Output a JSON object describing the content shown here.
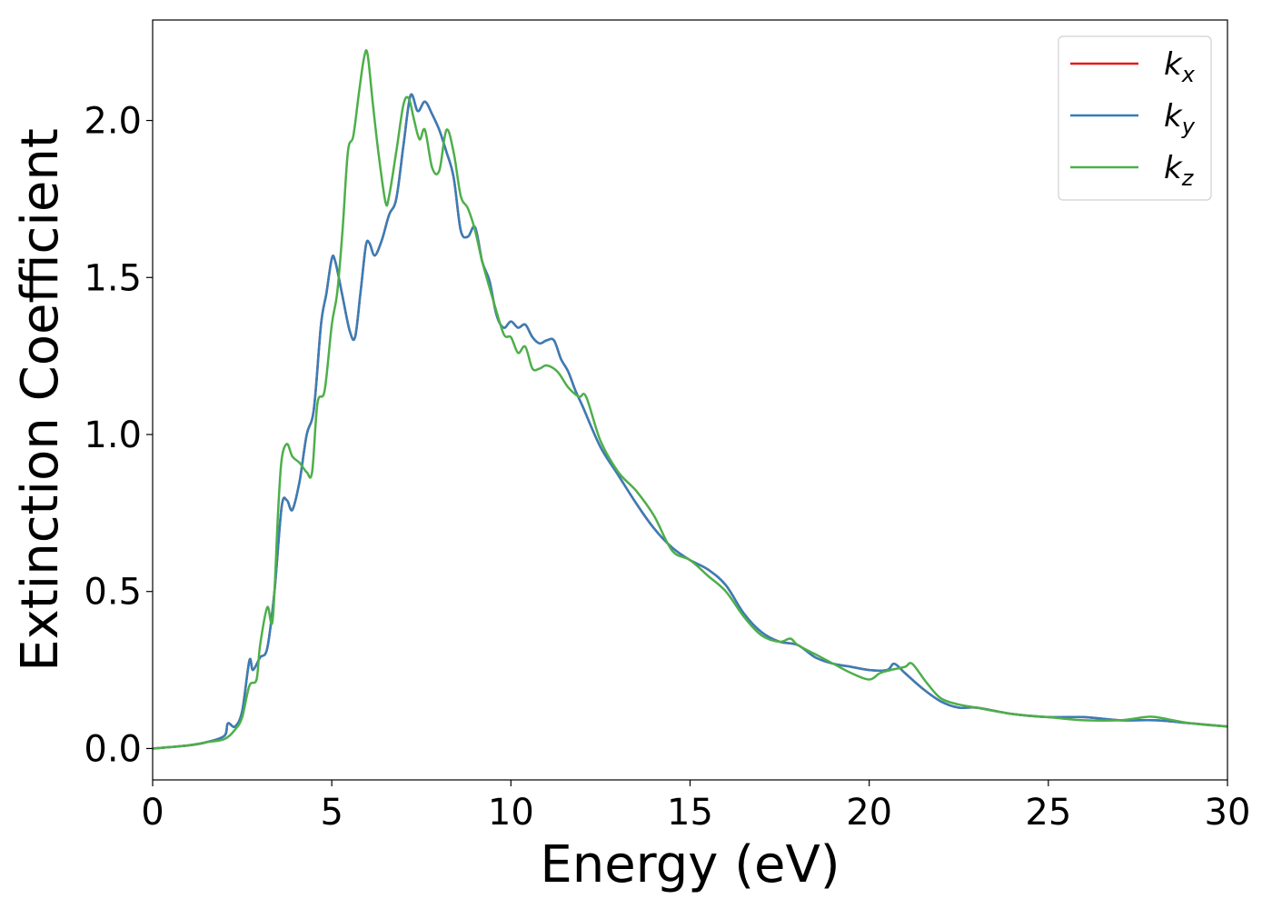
{
  "chart_data": {
    "type": "line",
    "title": "",
    "xlabel": "Energy (eV)",
    "ylabel": "Extinction Coefficient",
    "xlim": [
      0,
      30
    ],
    "ylim": [
      -0.1,
      2.32
    ],
    "xticks": [
      0,
      5,
      10,
      15,
      20,
      25,
      30
    ],
    "xtick_labels": [
      "0",
      "5",
      "10",
      "15",
      "20",
      "25",
      "30"
    ],
    "yticks": [
      0.0,
      0.5,
      1.0,
      1.5,
      2.0
    ],
    "ytick_labels": [
      "0.0",
      "0.5",
      "1.0",
      "1.5",
      "2.0"
    ],
    "grid": false,
    "legend_position": "top-right",
    "series": [
      {
        "name": "kx",
        "color": "#e41a1c",
        "x": [
          0,
          1,
          1.5,
          2.0,
          2.1,
          2.3,
          2.5,
          2.7,
          2.8,
          3.0,
          3.2,
          3.4,
          3.6,
          3.75,
          3.9,
          4.1,
          4.3,
          4.5,
          4.7,
          4.85,
          5.0,
          5.1,
          5.3,
          5.5,
          5.65,
          5.8,
          5.95,
          6.05,
          6.2,
          6.4,
          6.6,
          6.8,
          7.0,
          7.2,
          7.4,
          7.6,
          7.8,
          8.0,
          8.2,
          8.4,
          8.6,
          8.8,
          9.0,
          9.2,
          9.4,
          9.6,
          9.8,
          10.0,
          10.2,
          10.4,
          10.6,
          10.8,
          11.0,
          11.2,
          11.4,
          11.6,
          11.8,
          12.0,
          12.5,
          13.0,
          13.5,
          14.0,
          14.5,
          15.0,
          15.5,
          16.0,
          16.5,
          17.0,
          17.5,
          18.0,
          18.5,
          19.0,
          19.5,
          20.0,
          20.5,
          20.7,
          21.0,
          21.5,
          22.0,
          22.5,
          23.0,
          24.0,
          25.0,
          26.0,
          27.0,
          28.0,
          29.0,
          30.0
        ],
        "values": [
          0,
          0.01,
          0.02,
          0.04,
          0.08,
          0.07,
          0.12,
          0.28,
          0.25,
          0.29,
          0.32,
          0.5,
          0.77,
          0.79,
          0.76,
          0.85,
          1.0,
          1.08,
          1.35,
          1.45,
          1.56,
          1.55,
          1.44,
          1.33,
          1.31,
          1.45,
          1.6,
          1.61,
          1.57,
          1.62,
          1.7,
          1.75,
          1.92,
          2.08,
          2.03,
          2.06,
          2.02,
          1.97,
          1.9,
          1.82,
          1.65,
          1.63,
          1.66,
          1.55,
          1.49,
          1.38,
          1.34,
          1.36,
          1.34,
          1.35,
          1.31,
          1.29,
          1.3,
          1.3,
          1.24,
          1.2,
          1.14,
          1.09,
          0.96,
          0.87,
          0.78,
          0.7,
          0.64,
          0.6,
          0.57,
          0.52,
          0.43,
          0.37,
          0.34,
          0.33,
          0.29,
          0.27,
          0.26,
          0.25,
          0.25,
          0.27,
          0.24,
          0.19,
          0.15,
          0.13,
          0.13,
          0.11,
          0.1,
          0.1,
          0.09,
          0.09,
          0.08,
          0.07
        ]
      },
      {
        "name": "ky",
        "color": "#377eb8",
        "x": [
          0,
          1,
          1.5,
          2.0,
          2.1,
          2.3,
          2.5,
          2.7,
          2.8,
          3.0,
          3.2,
          3.4,
          3.6,
          3.75,
          3.9,
          4.1,
          4.3,
          4.5,
          4.7,
          4.85,
          5.0,
          5.1,
          5.3,
          5.5,
          5.65,
          5.8,
          5.95,
          6.05,
          6.2,
          6.4,
          6.6,
          6.8,
          7.0,
          7.2,
          7.4,
          7.6,
          7.8,
          8.0,
          8.2,
          8.4,
          8.6,
          8.8,
          9.0,
          9.2,
          9.4,
          9.6,
          9.8,
          10.0,
          10.2,
          10.4,
          10.6,
          10.8,
          11.0,
          11.2,
          11.4,
          11.6,
          11.8,
          12.0,
          12.5,
          13.0,
          13.5,
          14.0,
          14.5,
          15.0,
          15.5,
          16.0,
          16.5,
          17.0,
          17.5,
          18.0,
          18.5,
          19.0,
          19.5,
          20.0,
          20.5,
          20.7,
          21.0,
          21.5,
          22.0,
          22.5,
          23.0,
          24.0,
          25.0,
          26.0,
          27.0,
          28.0,
          29.0,
          30.0
        ],
        "values": [
          0,
          0.01,
          0.02,
          0.04,
          0.08,
          0.07,
          0.12,
          0.28,
          0.25,
          0.29,
          0.32,
          0.5,
          0.77,
          0.79,
          0.76,
          0.85,
          1.0,
          1.08,
          1.35,
          1.45,
          1.56,
          1.55,
          1.44,
          1.33,
          1.31,
          1.45,
          1.6,
          1.61,
          1.57,
          1.62,
          1.7,
          1.75,
          1.92,
          2.08,
          2.03,
          2.06,
          2.02,
          1.97,
          1.9,
          1.82,
          1.65,
          1.63,
          1.66,
          1.55,
          1.49,
          1.38,
          1.34,
          1.36,
          1.34,
          1.35,
          1.31,
          1.29,
          1.3,
          1.3,
          1.24,
          1.2,
          1.14,
          1.09,
          0.96,
          0.87,
          0.78,
          0.7,
          0.64,
          0.6,
          0.57,
          0.52,
          0.43,
          0.37,
          0.34,
          0.33,
          0.29,
          0.27,
          0.26,
          0.25,
          0.25,
          0.27,
          0.24,
          0.19,
          0.15,
          0.13,
          0.13,
          0.11,
          0.1,
          0.1,
          0.09,
          0.09,
          0.08,
          0.07
        ]
      },
      {
        "name": "kz",
        "color": "#4daf4a",
        "x": [
          0,
          1,
          1.5,
          2.0,
          2.3,
          2.5,
          2.7,
          2.9,
          3.0,
          3.2,
          3.35,
          3.5,
          3.6,
          3.75,
          3.9,
          4.1,
          4.3,
          4.45,
          4.6,
          4.8,
          5.0,
          5.15,
          5.3,
          5.45,
          5.6,
          5.75,
          5.9,
          6.0,
          6.15,
          6.3,
          6.5,
          6.6,
          6.8,
          7.0,
          7.15,
          7.3,
          7.45,
          7.6,
          7.8,
          8.0,
          8.2,
          8.4,
          8.6,
          8.8,
          9.0,
          9.2,
          9.5,
          9.8,
          10.0,
          10.2,
          10.4,
          10.6,
          10.8,
          11.0,
          11.3,
          11.6,
          11.9,
          12.1,
          12.5,
          13.0,
          13.5,
          14.0,
          14.5,
          15.0,
          15.5,
          16.0,
          16.5,
          17.0,
          17.5,
          17.8,
          18.0,
          18.5,
          19.0,
          19.5,
          20.0,
          20.3,
          20.6,
          21.0,
          21.2,
          21.6,
          22.0,
          22.5,
          23.0,
          24.0,
          25.0,
          26.0,
          27.0,
          27.7,
          28.0,
          29.0,
          30.0
        ],
        "values": [
          0,
          0.01,
          0.02,
          0.03,
          0.06,
          0.1,
          0.2,
          0.22,
          0.33,
          0.45,
          0.41,
          0.75,
          0.92,
          0.97,
          0.93,
          0.91,
          0.88,
          0.88,
          1.1,
          1.14,
          1.35,
          1.45,
          1.65,
          1.9,
          1.95,
          2.08,
          2.2,
          2.21,
          2.05,
          1.9,
          1.74,
          1.76,
          1.9,
          2.05,
          2.07,
          2.0,
          1.94,
          1.97,
          1.85,
          1.84,
          1.97,
          1.9,
          1.76,
          1.72,
          1.65,
          1.55,
          1.43,
          1.32,
          1.31,
          1.26,
          1.28,
          1.21,
          1.21,
          1.22,
          1.2,
          1.15,
          1.12,
          1.12,
          0.98,
          0.88,
          0.82,
          0.74,
          0.63,
          0.6,
          0.55,
          0.5,
          0.42,
          0.36,
          0.34,
          0.35,
          0.33,
          0.3,
          0.27,
          0.24,
          0.22,
          0.24,
          0.25,
          0.26,
          0.27,
          0.21,
          0.16,
          0.14,
          0.13,
          0.11,
          0.1,
          0.09,
          0.09,
          0.1,
          0.1,
          0.08,
          0.07
        ]
      }
    ]
  },
  "legend": {
    "entries": [
      {
        "base": "k",
        "sub": "x",
        "color": "#e41a1c"
      },
      {
        "base": "k",
        "sub": "y",
        "color": "#377eb8"
      },
      {
        "base": "k",
        "sub": "z",
        "color": "#4daf4a"
      }
    ]
  }
}
